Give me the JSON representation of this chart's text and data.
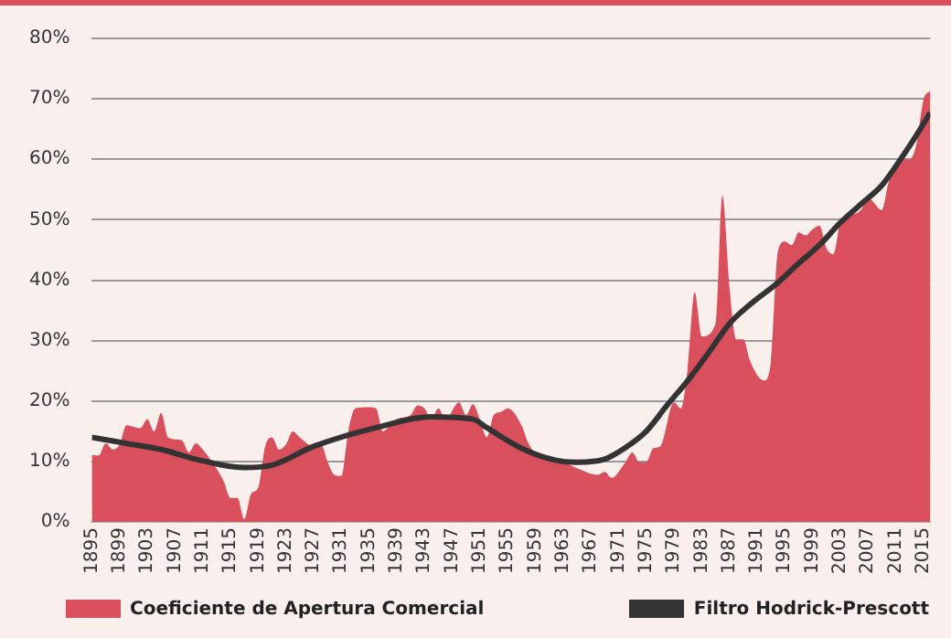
{
  "chart_data": {
    "type": "area",
    "x": [
      1895,
      1896,
      1897,
      1898,
      1899,
      1900,
      1902,
      1903,
      1904,
      1905,
      1906,
      1908,
      1909,
      1910,
      1911,
      1912,
      1914,
      1915,
      1916,
      1917,
      1918,
      1919,
      1920,
      1921,
      1922,
      1923,
      1924,
      1925,
      1927,
      1928,
      1929,
      1930,
      1931,
      1932,
      1933,
      1935,
      1936,
      1937,
      1938,
      1939,
      1941,
      1942,
      1943,
      1944,
      1945,
      1946,
      1948,
      1949,
      1950,
      1951,
      1952,
      1953,
      1954,
      1955,
      1957,
      1958,
      1960,
      1963,
      1965,
      1968,
      1969,
      1970,
      1972,
      1973,
      1974,
      1975,
      1976,
      1977,
      1979,
      1980,
      1981,
      1982,
      1983,
      1985,
      1986,
      1987,
      1988,
      1989,
      1990,
      1992,
      1993,
      1994,
      1995,
      1996,
      1997,
      1998,
      1999,
      2000,
      2001,
      2002,
      2003,
      2004,
      2006,
      2007,
      2009,
      2010,
      2012,
      2013,
      2014,
      2015,
      2016
    ],
    "series": [
      {
        "name": "Coeficiente de Apertura Comercial",
        "color": "#d94f5c",
        "values": [
          11.1,
          11,
          13,
          12,
          12.8,
          16,
          15.5,
          17,
          15,
          18,
          14,
          13.5,
          11.5,
          13,
          12,
          10.5,
          6.8,
          4,
          4,
          0.5,
          4.7,
          5.7,
          12.5,
          14,
          12,
          12.8,
          15,
          14,
          12.5,
          13,
          10,
          7.8,
          7.6,
          15,
          18.8,
          19,
          18.8,
          15,
          16,
          17,
          17.7,
          19.3,
          18.8,
          17,
          18.8,
          17,
          19.8,
          17.7,
          19.5,
          17,
          14,
          17.7,
          18.2,
          18.8,
          16,
          13,
          10.4,
          9.9,
          8.9,
          7.8,
          8.3,
          7.3,
          9.9,
          11.5,
          9.9,
          9.9,
          12.2,
          12.5,
          19.8,
          18.8,
          25.5,
          38,
          30.7,
          32.8,
          54,
          39,
          30.2,
          30.2,
          26.6,
          23.4,
          26.6,
          44.8,
          46.4,
          45.8,
          47.9,
          47.4,
          48.4,
          49,
          45.3,
          44.3,
          49.5,
          50.5,
          51.6,
          53.6,
          51.6,
          56.3,
          60,
          60,
          62.5,
          69.8,
          71.4
        ]
      },
      {
        "name": "Filtro Hodrick-Prescott",
        "type": "line",
        "color": "#333333",
        "x": [
          1895,
          1900,
          1905,
          1910,
          1917,
          1921,
          1927,
          1936,
          1944,
          1950,
          1952,
          1957,
          1962,
          1965,
          1969,
          1972,
          1975,
          1978,
          1981,
          1984,
          1987,
          1990,
          1994,
          1997,
          2000,
          2003,
          2006,
          2009,
          2012,
          2014,
          2016
        ],
        "values": [
          14,
          13,
          12,
          10.4,
          9,
          9.4,
          12.5,
          15.6,
          17.4,
          17,
          15.6,
          12.2,
          10.2,
          9.9,
          10.4,
          12.3,
          15,
          19.3,
          23.4,
          28,
          32.8,
          36,
          39.6,
          42.8,
          45.8,
          49.5,
          52.6,
          55.7,
          60.5,
          64,
          67.7
        ]
      }
    ],
    "xlim": [
      1895,
      2016
    ],
    "xticks": [
      1895,
      1899,
      1903,
      1907,
      1911,
      1915,
      1919,
      1923,
      1927,
      1931,
      1935,
      1939,
      1943,
      1947,
      1951,
      1955,
      1959,
      1963,
      1967,
      1971,
      1975,
      1979,
      1983,
      1987,
      1991,
      1995,
      1999,
      2003,
      2007,
      2011,
      2015
    ],
    "ylim": [
      0,
      80
    ],
    "yticks": [
      {
        "value": 0,
        "label": "0%"
      },
      {
        "value": 10,
        "label": "10%"
      },
      {
        "value": 20,
        "label": "20%"
      },
      {
        "value": 30,
        "label": "30%"
      },
      {
        "value": 40,
        "label": "40%"
      },
      {
        "value": 50,
        "label": "50%"
      },
      {
        "value": 60,
        "label": "60%"
      },
      {
        "value": 70,
        "label": "70%"
      },
      {
        "value": 80,
        "label": "80%"
      }
    ],
    "grid": "y",
    "legend": "bottom",
    "marker": "none",
    "line_style": "solid"
  }
}
